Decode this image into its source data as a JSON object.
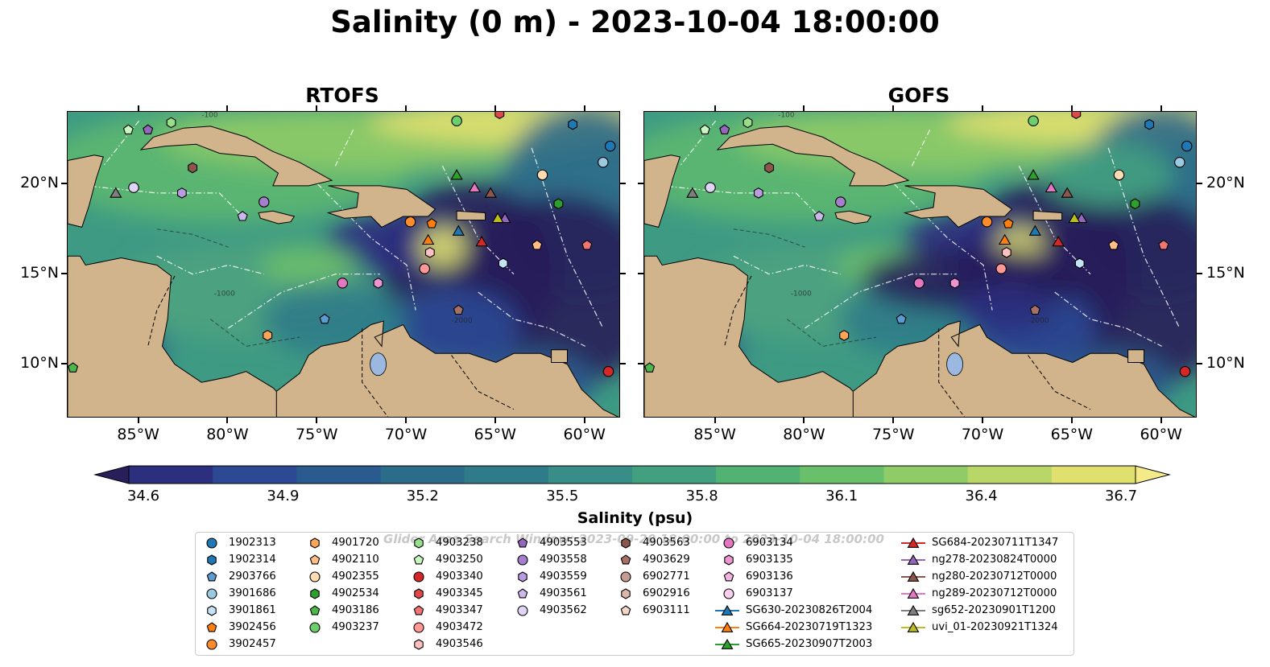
{
  "title": "Salinity (0 m) - 2023-10-04 18:00:00",
  "panels": [
    {
      "title": "RTOFS"
    },
    {
      "title": "GOFS"
    }
  ],
  "axes": {
    "lon_labels": [
      "85°W",
      "80°W",
      "75°W",
      "70°W",
      "65°W",
      "60°W"
    ],
    "lon_values": [
      -85,
      -80,
      -75,
      -70,
      -65,
      -60
    ],
    "lat_labels": [
      "20°N",
      "15°N",
      "10°N"
    ],
    "lat_values": [
      20,
      15,
      10
    ],
    "lon_range": [
      -89,
      -58
    ],
    "lat_range": [
      7,
      24
    ]
  },
  "colorbar": {
    "label": "Salinity (psu)",
    "ticks": [
      "34.6",
      "34.9",
      "35.2",
      "35.5",
      "35.8",
      "36.1",
      "36.4",
      "36.7"
    ],
    "tick_values": [
      34.6,
      34.9,
      35.2,
      35.5,
      35.8,
      36.1,
      36.4,
      36.7
    ],
    "min": 34.6,
    "max": 36.7,
    "extend": "both",
    "colors": [
      "#281e5a",
      "#2c2f7e",
      "#2e4993",
      "#2a5b8e",
      "#2b6c8b",
      "#2f7b89",
      "#388d87",
      "#42a080",
      "#52b274",
      "#6abf6a",
      "#8fcb67",
      "#b9d668",
      "#e0e06e",
      "#f4ea8a"
    ]
  },
  "legend": {
    "watermark": "Glider Area Search Window: 2023-09-20 18:00:00 to 2023-10-04 18:00:00",
    "items": [
      {
        "label": "1902313",
        "marker": "circle",
        "color": "#1f77b4"
      },
      {
        "label": "1902314",
        "marker": "hexagon",
        "color": "#1f77b4"
      },
      {
        "label": "2903766",
        "marker": "pentagon",
        "color": "#5a9bd4"
      },
      {
        "label": "3901686",
        "marker": "circle",
        "color": "#9ecae1"
      },
      {
        "label": "3901861",
        "marker": "hexagon",
        "color": "#c6e2f5"
      },
      {
        "label": "3902456",
        "marker": "pentagon",
        "color": "#ff7f0e"
      },
      {
        "label": "3902457",
        "marker": "circle",
        "color": "#ff8c2a"
      },
      {
        "label": "4901720",
        "marker": "hexagon",
        "color": "#ffa557"
      },
      {
        "label": "4902110",
        "marker": "pentagon",
        "color": "#ffbf86"
      },
      {
        "label": "4902355",
        "marker": "circle",
        "color": "#ffdcb4"
      },
      {
        "label": "4902534",
        "marker": "hexagon",
        "color": "#2ca02c"
      },
      {
        "label": "4903186",
        "marker": "pentagon",
        "color": "#4cb84c"
      },
      {
        "label": "4903237",
        "marker": "circle",
        "color": "#6ccf6c"
      },
      {
        "label": "4903238",
        "marker": "hexagon",
        "color": "#98df8a"
      },
      {
        "label": "4903250",
        "marker": "pentagon",
        "color": "#c8f5c0"
      },
      {
        "label": "4903340",
        "marker": "circle",
        "color": "#d62728"
      },
      {
        "label": "4903345",
        "marker": "hexagon",
        "color": "#e04849"
      },
      {
        "label": "4903347",
        "marker": "pentagon",
        "color": "#f07474"
      },
      {
        "label": "4903472",
        "marker": "circle",
        "color": "#ff9896"
      },
      {
        "label": "4903546",
        "marker": "hexagon",
        "color": "#ffc2c0"
      },
      {
        "label": "4903553",
        "marker": "pentagon",
        "color": "#9467bd"
      },
      {
        "label": "4903558",
        "marker": "circle",
        "color": "#a47fcd"
      },
      {
        "label": "4903559",
        "marker": "hexagon",
        "color": "#b89ce0"
      },
      {
        "label": "4903561",
        "marker": "pentagon",
        "color": "#cdb8ee"
      },
      {
        "label": "4903562",
        "marker": "circle",
        "color": "#e0d4f7"
      },
      {
        "label": "4903563",
        "marker": "hexagon",
        "color": "#8c564b"
      },
      {
        "label": "4903629",
        "marker": "pentagon",
        "color": "#a57065"
      },
      {
        "label": "6902771",
        "marker": "circle",
        "color": "#c49c94"
      },
      {
        "label": "6902916",
        "marker": "hexagon",
        "color": "#dbb6ab"
      },
      {
        "label": "6903111",
        "marker": "pentagon",
        "color": "#f5d5cc"
      },
      {
        "label": "6903134",
        "marker": "circle",
        "color": "#e377c2"
      },
      {
        "label": "6903135",
        "marker": "hexagon",
        "color": "#ec95d2"
      },
      {
        "label": "6903136",
        "marker": "pentagon",
        "color": "#f4b3e0"
      },
      {
        "label": "6903137",
        "marker": "circle",
        "color": "#fbcdee"
      },
      {
        "label": "SG630-20230826T2004",
        "marker": "triangle",
        "color": "#1f77b4"
      },
      {
        "label": "SG664-20230719T1323",
        "marker": "triangle",
        "color": "#ff7f0e"
      },
      {
        "label": "SG665-20230907T2003",
        "marker": "triangle",
        "color": "#2ca02c"
      },
      {
        "label": "SG684-20230711T1347",
        "marker": "triangle",
        "color": "#d62728"
      },
      {
        "label": "ng278-20230824T0000",
        "marker": "triangle",
        "color": "#9467bd"
      },
      {
        "label": "ng280-20230712T0000",
        "marker": "triangle",
        "color": "#8c564b"
      },
      {
        "label": "ng289-20230712T0000",
        "marker": "triangle",
        "color": "#e377c2"
      },
      {
        "label": "sg652-20230901T1200",
        "marker": "triangle",
        "color": "#7f7f7f"
      },
      {
        "label": "uvi_01-20230921T1324",
        "marker": "triangle",
        "color": "#bcbd22"
      }
    ]
  },
  "map_markers": [
    {
      "id": "1902313",
      "marker": "circle",
      "color": "#1f77b4",
      "lon": -58.6,
      "lat": 22.1
    },
    {
      "id": "1902314",
      "marker": "hexagon",
      "color": "#1f77b4",
      "lon": -60.7,
      "lat": 23.3
    },
    {
      "id": "2903766",
      "marker": "pentagon",
      "color": "#5a9bd4",
      "lon": -74.6,
      "lat": 12.5
    },
    {
      "id": "3901686",
      "marker": "circle",
      "color": "#9ecae1",
      "lon": -59.0,
      "lat": 21.2
    },
    {
      "id": "3901861",
      "marker": "hexagon",
      "color": "#c6e2f5",
      "lon": -64.6,
      "lat": 15.6
    },
    {
      "id": "3902456",
      "marker": "pentagon",
      "color": "#ff7f0e",
      "lon": -68.6,
      "lat": 17.8
    },
    {
      "id": "3902457",
      "marker": "circle",
      "color": "#ff8c2a",
      "lon": -69.8,
      "lat": 17.9
    },
    {
      "id": "4901720",
      "marker": "hexagon",
      "color": "#ffa557",
      "lon": -77.8,
      "lat": 11.6
    },
    {
      "id": "4902110",
      "marker": "pentagon",
      "color": "#ffbf86",
      "lon": -62.7,
      "lat": 16.6
    },
    {
      "id": "4902355",
      "marker": "circle",
      "color": "#ffdcb4",
      "lon": -62.4,
      "lat": 20.5
    },
    {
      "id": "4902534",
      "marker": "hexagon",
      "color": "#2ca02c",
      "lon": -61.5,
      "lat": 18.9
    },
    {
      "id": "4903186",
      "marker": "pentagon",
      "color": "#4cb84c",
      "lon": -88.7,
      "lat": 9.8
    },
    {
      "id": "4903237",
      "marker": "circle",
      "color": "#6ccf6c",
      "lon": -67.2,
      "lat": 23.5
    },
    {
      "id": "4903238",
      "marker": "hexagon",
      "color": "#98df8a",
      "lon": -83.2,
      "lat": 23.4
    },
    {
      "id": "4903250",
      "marker": "pentagon",
      "color": "#c8f5c0",
      "lon": -85.6,
      "lat": 23.0
    },
    {
      "id": "4903340",
      "marker": "circle",
      "color": "#d62728",
      "lon": -58.7,
      "lat": 9.6
    },
    {
      "id": "4903345",
      "marker": "hexagon",
      "color": "#e04849",
      "lon": -64.8,
      "lat": 23.9
    },
    {
      "id": "4903347",
      "marker": "pentagon",
      "color": "#f07474",
      "lon": -59.9,
      "lat": 16.6
    },
    {
      "id": "4903472",
      "marker": "circle",
      "color": "#ff9896",
      "lon": -69.0,
      "lat": 15.3
    },
    {
      "id": "4903546",
      "marker": "hexagon",
      "color": "#ffc2c0",
      "lon": -68.7,
      "lat": 16.2
    },
    {
      "id": "4903553",
      "marker": "pentagon",
      "color": "#9467bd",
      "lon": -84.5,
      "lat": 23.0
    },
    {
      "id": "4903558",
      "marker": "circle",
      "color": "#a47fcd",
      "lon": -78.0,
      "lat": 19.0
    },
    {
      "id": "4903559",
      "marker": "hexagon",
      "color": "#b89ce0",
      "lon": -82.6,
      "lat": 19.5
    },
    {
      "id": "4903561",
      "marker": "pentagon",
      "color": "#cdb8ee",
      "lon": -79.2,
      "lat": 18.2
    },
    {
      "id": "4903562",
      "marker": "circle",
      "color": "#e0d4f7",
      "lon": -85.3,
      "lat": 19.8
    },
    {
      "id": "4903563",
      "marker": "hexagon",
      "color": "#8c564b",
      "lon": -82.0,
      "lat": 20.9
    },
    {
      "id": "4903629",
      "marker": "pentagon",
      "color": "#a57065",
      "lon": -67.1,
      "lat": 13.0
    },
    {
      "id": "6903134",
      "marker": "circle",
      "color": "#e377c2",
      "lon": -73.6,
      "lat": 14.5
    },
    {
      "id": "6903135",
      "marker": "hexagon",
      "color": "#ec95d2",
      "lon": -71.6,
      "lat": 14.5
    },
    {
      "id": "SG630-20230826T2004",
      "marker": "triangle",
      "color": "#1f77b4",
      "lon": -67.1,
      "lat": 17.4
    },
    {
      "id": "SG664-20230719T1323",
      "marker": "triangle",
      "color": "#ff7f0e",
      "lon": -68.8,
      "lat": 16.9
    },
    {
      "id": "SG665-20230907T2003",
      "marker": "triangle",
      "color": "#2ca02c",
      "lon": -67.2,
      "lat": 20.5
    },
    {
      "id": "SG684-20230711T1347",
      "marker": "triangle",
      "color": "#d62728",
      "lon": -65.8,
      "lat": 16.8
    },
    {
      "id": "ng278-20230824T0000",
      "marker": "triangle",
      "color": "#9467bd",
      "lon": -64.5,
      "lat": 18.1
    },
    {
      "id": "ng280-20230712T0000",
      "marker": "triangle",
      "color": "#8c564b",
      "lon": -65.3,
      "lat": 19.5
    },
    {
      "id": "ng289-20230712T0000",
      "marker": "triangle",
      "color": "#e377c2",
      "lon": -66.2,
      "lat": 19.8
    },
    {
      "id": "sg652-20230901T1200",
      "marker": "triangle",
      "color": "#7f7f7f",
      "lon": -86.3,
      "lat": 19.5
    },
    {
      "id": "uvi_01-20230921T1324",
      "marker": "triangle",
      "color": "#bcbd22",
      "lon": -64.9,
      "lat": 18.1
    }
  ],
  "contour_labels": [
    "-100",
    "-1000",
    "-2000"
  ],
  "colors": {
    "land": "#d2b48c",
    "lake": "#9ab8e0",
    "ocean_deep": "#281e5a"
  }
}
